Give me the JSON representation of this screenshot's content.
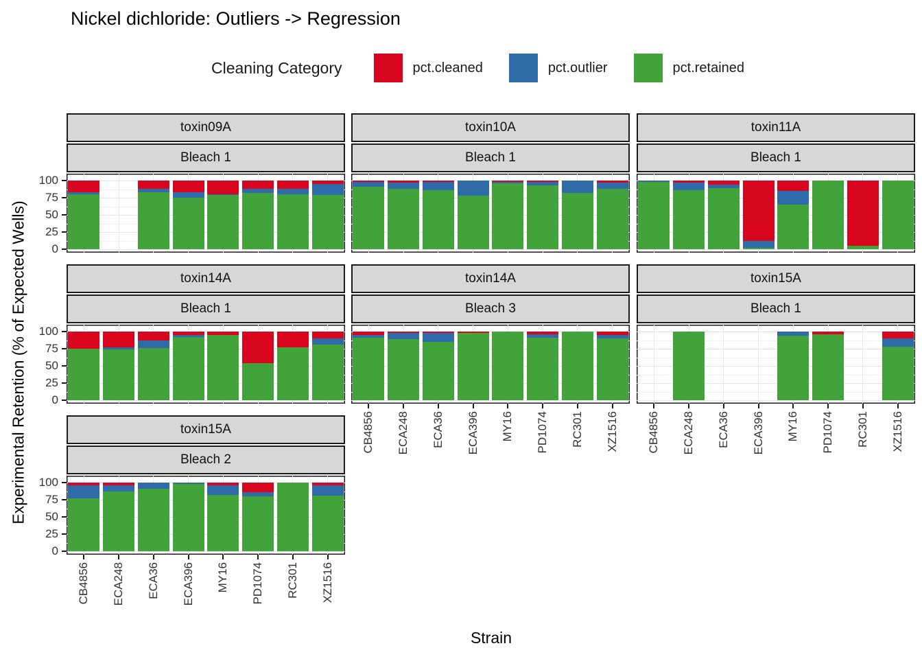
{
  "title": "Nickel dichloride: Outliers -> Regression",
  "legend": {
    "title": "Cleaning Category",
    "items": [
      {
        "label": "pct.cleaned",
        "color": "#d8051f"
      },
      {
        "label": "pct.outlier",
        "color": "#2e6ba8"
      },
      {
        "label": "pct.retained",
        "color": "#43a33b"
      }
    ]
  },
  "axes": {
    "y_title": "Experimental Retention (% of Expected Wells)",
    "x_title": "Strain",
    "y_ticks": [
      100,
      75,
      50,
      25,
      0
    ],
    "y_minor_ticks": [
      87.5,
      62.5,
      37.5,
      12.5
    ],
    "ylim": [
      0,
      100
    ]
  },
  "chart_data": {
    "type": "bar",
    "stacked": true,
    "orientation": "vertical",
    "categories": [
      "CB4856",
      "ECA248",
      "ECA36",
      "ECA396",
      "MY16",
      "PD1074",
      "RC301",
      "XZ1516"
    ],
    "series_names": [
      "pct.cleaned",
      "pct.outlier",
      "pct.retained"
    ],
    "series_colors": {
      "pct.cleaned": "#d8051f",
      "pct.outlier": "#2e6ba8",
      "pct.retained": "#43a33b"
    },
    "panels": [
      {
        "facet_toxin": "toxin09A",
        "facet_bleach": "Bleach 1",
        "col": 0,
        "row": 0,
        "show_y_axis": true,
        "show_x_labels": false,
        "series": {
          "pct.retained": [
            80,
            null,
            83,
            75,
            79,
            82,
            80,
            79
          ],
          "pct.outlier": [
            3,
            null,
            5,
            8,
            1,
            6,
            8,
            16
          ],
          "pct.cleaned": [
            17,
            null,
            12,
            17,
            20,
            12,
            12,
            5
          ]
        }
      },
      {
        "facet_toxin": "toxin10A",
        "facet_bleach": "Bleach 1",
        "col": 1,
        "row": 0,
        "show_y_axis": false,
        "show_x_labels": false,
        "series": {
          "pct.retained": [
            91,
            88,
            86,
            78,
            96,
            93,
            82,
            88
          ],
          "pct.outlier": [
            7,
            9,
            12,
            22,
            2,
            5,
            18,
            9
          ],
          "pct.cleaned": [
            2,
            3,
            2,
            0,
            2,
            2,
            0,
            3
          ]
        }
      },
      {
        "facet_toxin": "toxin11A",
        "facet_bleach": "Bleach 1",
        "col": 2,
        "row": 0,
        "show_y_axis": false,
        "show_x_labels": false,
        "series": {
          "pct.retained": [
            98,
            86,
            89,
            2,
            65,
            100,
            5,
            100
          ],
          "pct.outlier": [
            2,
            11,
            5,
            10,
            20,
            0,
            0,
            0
          ],
          "pct.cleaned": [
            0,
            3,
            6,
            88,
            15,
            0,
            95,
            0
          ]
        }
      },
      {
        "facet_toxin": "toxin14A",
        "facet_bleach": "Bleach 1",
        "col": 0,
        "row": 1,
        "show_y_axis": true,
        "show_x_labels": false,
        "series": {
          "pct.retained": [
            75,
            74,
            76,
            92,
            95,
            54,
            77,
            81
          ],
          "pct.outlier": [
            0,
            3,
            11,
            3,
            0,
            0,
            0,
            9
          ],
          "pct.cleaned": [
            25,
            23,
            13,
            5,
            5,
            46,
            23,
            10
          ]
        }
      },
      {
        "facet_toxin": "toxin14A",
        "facet_bleach": "Bleach 3",
        "col": 1,
        "row": 1,
        "show_y_axis": false,
        "show_x_labels": true,
        "series": {
          "pct.retained": [
            91,
            89,
            85,
            98,
            100,
            91,
            100,
            90
          ],
          "pct.outlier": [
            4,
            9,
            13,
            0,
            0,
            5,
            0,
            5
          ],
          "pct.cleaned": [
            5,
            2,
            2,
            2,
            0,
            4,
            0,
            5
          ]
        }
      },
      {
        "facet_toxin": "toxin15A",
        "facet_bleach": "Bleach 1",
        "col": 2,
        "row": 1,
        "show_y_axis": false,
        "show_x_labels": true,
        "series": {
          "pct.retained": [
            null,
            100,
            null,
            null,
            94,
            96,
            null,
            78
          ],
          "pct.outlier": [
            null,
            0,
            null,
            null,
            6,
            0,
            null,
            12
          ],
          "pct.cleaned": [
            null,
            0,
            null,
            null,
            0,
            4,
            null,
            10
          ]
        }
      },
      {
        "facet_toxin": "toxin15A",
        "facet_bleach": "Bleach 2",
        "col": 0,
        "row": 2,
        "show_y_axis": true,
        "show_x_labels": true,
        "series": {
          "pct.retained": [
            77,
            87,
            91,
            98,
            82,
            80,
            100,
            81
          ],
          "pct.outlier": [
            19,
            9,
            9,
            2,
            14,
            6,
            0,
            15
          ],
          "pct.cleaned": [
            4,
            4,
            0,
            0,
            4,
            14,
            0,
            4
          ]
        }
      }
    ]
  }
}
